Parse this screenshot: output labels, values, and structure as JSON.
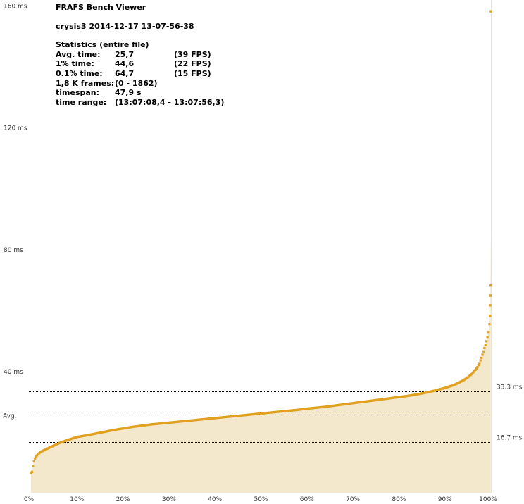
{
  "app": {
    "title": "FRAFS Bench Viewer"
  },
  "file": {
    "name": "crysis3 2014-12-17 13-07-56-38"
  },
  "statistics": {
    "heading": "Statistics (entire file)",
    "rows": [
      {
        "label": "Avg. time:",
        "value": "25,7",
        "extra": "(39 FPS)"
      },
      {
        "label": "1% time:",
        "value": "44,6",
        "extra": "(22 FPS)"
      },
      {
        "label": "0.1% time:",
        "value": "64,7",
        "extra": "(15 FPS)"
      },
      {
        "label": "1,8 K frames:",
        "value": "(0 - 1862)",
        "extra": ""
      },
      {
        "label": "timespan:",
        "value": "47,9 s",
        "extra": ""
      },
      {
        "label": "time range:",
        "value": "(13:07:08,4 - 13:07:56,3)",
        "extra": ""
      }
    ]
  },
  "chart_data": {
    "type": "area",
    "title": "",
    "xlabel": "",
    "ylabel": "",
    "xlim": [
      0,
      100
    ],
    "ylim": [
      0,
      160
    ],
    "x_ticks": [
      "0%",
      "10%",
      "20%",
      "30%",
      "40%",
      "50%",
      "60%",
      "70%",
      "80%",
      "90%",
      "100%"
    ],
    "y_ticks": [
      {
        "value": 40,
        "label": "40 ms"
      },
      {
        "value": 80,
        "label": "80 ms"
      },
      {
        "value": 120,
        "label": "120 ms"
      },
      {
        "value": 160,
        "label": "160 ms"
      }
    ],
    "reference_lines": [
      {
        "value": 33.3,
        "label": "33.3 ms",
        "style": "dotted"
      },
      {
        "value": 25.7,
        "label": "Avg.",
        "style": "dashed"
      },
      {
        "value": 16.7,
        "label": "16.7 ms",
        "style": "dotted"
      }
    ],
    "series": [
      {
        "color": "#e0a020",
        "fill": "#f3e7cc",
        "points": [
          [
            0,
            6.5
          ],
          [
            0.3,
            7
          ],
          [
            0.5,
            9.5
          ],
          [
            0.8,
            11
          ],
          [
            1,
            11.8
          ],
          [
            1.5,
            12.6
          ],
          [
            2,
            13.3
          ],
          [
            3,
            14.1
          ],
          [
            4,
            14.8
          ],
          [
            5,
            15.5
          ],
          [
            6,
            16.2
          ],
          [
            7,
            16.8
          ],
          [
            8,
            17.3
          ],
          [
            9,
            17.8
          ],
          [
            10,
            18.3
          ],
          [
            12,
            18.8
          ],
          [
            14,
            19.4
          ],
          [
            16,
            20.0
          ],
          [
            18,
            20.6
          ],
          [
            20,
            21.1
          ],
          [
            22,
            21.6
          ],
          [
            24,
            22.0
          ],
          [
            26,
            22.4
          ],
          [
            28,
            22.7
          ],
          [
            30,
            23.0
          ],
          [
            32,
            23.3
          ],
          [
            34,
            23.6
          ],
          [
            36,
            23.9
          ],
          [
            38,
            24.2
          ],
          [
            40,
            24.5
          ],
          [
            42,
            24.8
          ],
          [
            44,
            25.1
          ],
          [
            46,
            25.4
          ],
          [
            48,
            25.7
          ],
          [
            50,
            26.0
          ],
          [
            52,
            26.3
          ],
          [
            54,
            26.6
          ],
          [
            56,
            26.9
          ],
          [
            58,
            27.2
          ],
          [
            60,
            27.6
          ],
          [
            62,
            27.9
          ],
          [
            64,
            28.2
          ],
          [
            66,
            28.6
          ],
          [
            68,
            29.0
          ],
          [
            70,
            29.4
          ],
          [
            72,
            29.8
          ],
          [
            74,
            30.2
          ],
          [
            76,
            30.6
          ],
          [
            78,
            31.0
          ],
          [
            80,
            31.4
          ],
          [
            82,
            31.8
          ],
          [
            84,
            32.3
          ],
          [
            86,
            32.9
          ],
          [
            88,
            33.6
          ],
          [
            90,
            34.4
          ],
          [
            91,
            34.9
          ],
          [
            92,
            35.4
          ],
          [
            93,
            36.1
          ],
          [
            94,
            36.9
          ],
          [
            95,
            37.9
          ],
          [
            96,
            39.2
          ],
          [
            97,
            41.0
          ],
          [
            97.5,
            42.5
          ],
          [
            98,
            44.5
          ],
          [
            98.5,
            47
          ],
          [
            99,
            49.5
          ],
          [
            99.3,
            51.5
          ],
          [
            99.5,
            53
          ],
          [
            99.7,
            55.5
          ],
          [
            99.8,
            58
          ],
          [
            99.85,
            61.5
          ],
          [
            99.9,
            64.7
          ],
          [
            99.95,
            68
          ],
          [
            100,
            158
          ]
        ]
      }
    ],
    "grid": false,
    "legend": "none"
  }
}
